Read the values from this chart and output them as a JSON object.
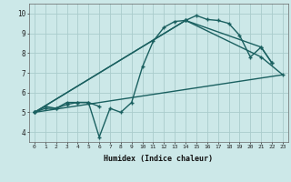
{
  "background_color": "#cce8e8",
  "grid_color": "#aacccc",
  "line_color": "#1a6060",
  "line_width": 1.0,
  "marker": "+",
  "marker_size": 3,
  "xlabel": "Humidex (Indice chaleur)",
  "ylabel_ticks": [
    4,
    5,
    6,
    7,
    8,
    9,
    10
  ],
  "xlim": [
    -0.5,
    23.5
  ],
  "ylim": [
    3.5,
    10.5
  ],
  "xticks": [
    0,
    1,
    2,
    3,
    4,
    5,
    6,
    7,
    8,
    9,
    10,
    11,
    12,
    13,
    14,
    15,
    16,
    17,
    18,
    19,
    20,
    21,
    22,
    23
  ],
  "series": [
    {
      "x": [
        0,
        1,
        2,
        3,
        4,
        5,
        6,
        7,
        8,
        9,
        10,
        11,
        12,
        13,
        14,
        15,
        16,
        17,
        18,
        19,
        20,
        21,
        22
      ],
      "y": [
        5.0,
        5.3,
        5.2,
        5.5,
        5.5,
        5.5,
        3.75,
        5.2,
        5.0,
        5.5,
        7.3,
        8.6,
        9.3,
        9.6,
        9.65,
        9.9,
        9.7,
        9.65,
        9.5,
        8.9,
        7.8,
        8.3,
        7.5
      ]
    },
    {
      "x": [
        0,
        1,
        2,
        3,
        4,
        5,
        6
      ],
      "y": [
        5.0,
        5.2,
        5.2,
        5.4,
        5.5,
        5.5,
        5.3
      ]
    },
    {
      "x": [
        0,
        23
      ],
      "y": [
        5.0,
        6.9
      ]
    },
    {
      "x": [
        0,
        14,
        21,
        23
      ],
      "y": [
        5.0,
        9.65,
        7.8,
        6.9
      ]
    },
    {
      "x": [
        0,
        14,
        21,
        22
      ],
      "y": [
        5.0,
        9.65,
        8.3,
        7.5
      ]
    }
  ]
}
